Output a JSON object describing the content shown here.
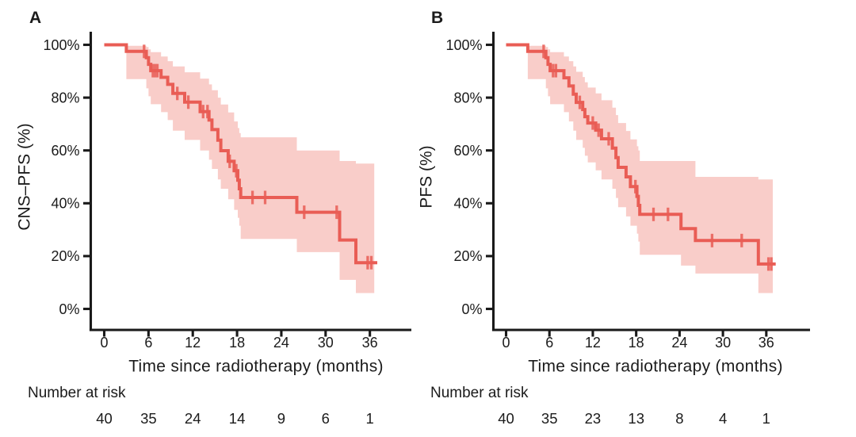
{
  "figure": {
    "background": "#ffffff",
    "axis_color": "#1a1a1a",
    "text_color": "#1b1b1b"
  },
  "chart_data": [
    {
      "type": "line",
      "subtype": "kaplan-meier-step",
      "title": "A",
      "xlabel": "Time since radiotherapy (months)",
      "ylabel": "CNS–PFS (%)",
      "xlim": [
        0,
        38
      ],
      "ylim": [
        0,
        100
      ],
      "x_ticks": [
        0,
        6,
        12,
        18,
        24,
        30,
        36
      ],
      "y_tick_values": [
        0,
        20,
        40,
        60,
        80,
        100
      ],
      "y_tick_labels": [
        "0%",
        "20%",
        "40%",
        "60%",
        "80%",
        "100%"
      ],
      "grid": false,
      "legend": "none",
      "series": [
        {
          "name": "CNS-PFS",
          "color": "#e95d55",
          "band_color": "#f9cdc9",
          "steps": [
            [
              0,
              100
            ],
            [
              3,
              97.5
            ],
            [
              5.7,
              95.1
            ],
            [
              6,
              92.6
            ],
            [
              6.3,
              90.2
            ],
            [
              7.7,
              87.7
            ],
            [
              8.6,
              85.0
            ],
            [
              9.3,
              81.6
            ],
            [
              10.9,
              78.3
            ],
            [
              13,
              74.7
            ],
            [
              14.2,
              71.5
            ],
            [
              14.6,
              67.9
            ],
            [
              15.4,
              63.9
            ],
            [
              15.8,
              59.9
            ],
            [
              16.8,
              55.9
            ],
            [
              17.6,
              52.3
            ],
            [
              18.1,
              48.7
            ],
            [
              18.3,
              45.5
            ],
            [
              18.5,
              42.2
            ],
            [
              26.1,
              36.6
            ],
            [
              31.9,
              26.1
            ],
            [
              34.1,
              17.5
            ]
          ],
          "curve_end": 37.0,
          "censor_times": [
            5.4,
            6.6,
            6.9,
            7.2,
            9.9,
            11.4,
            13.4,
            14.0,
            17.0,
            17.9,
            20.1,
            21.8,
            27.1,
            31.5,
            35.7,
            36.2
          ],
          "ci_band": [
            [
              3,
              87,
              99.6
            ],
            [
              5.7,
              83.5,
              99.2
            ],
            [
              6,
              80.5,
              98.3
            ],
            [
              6.3,
              77.5,
              97.2
            ],
            [
              7.7,
              74.5,
              95.6
            ],
            [
              8.6,
              71.5,
              93.8
            ],
            [
              9.3,
              67.5,
              91.8
            ],
            [
              10.9,
              64,
              89.6
            ],
            [
              13,
              60,
              87.2
            ],
            [
              14.2,
              56.5,
              85
            ],
            [
              14.6,
              53,
              82.8
            ],
            [
              15.4,
              49,
              80
            ],
            [
              15.8,
              45.5,
              77.4
            ],
            [
              16.8,
              41.5,
              74.4
            ],
            [
              17.6,
              37.5,
              71
            ],
            [
              18.1,
              34.5,
              68.5
            ],
            [
              18.3,
              31.5,
              66.6
            ],
            [
              18.5,
              26.5,
              65
            ],
            [
              26.1,
              21.5,
              60
            ],
            [
              31.9,
              11,
              56
            ],
            [
              34.1,
              6,
              55
            ]
          ],
          "band_end": 36.6
        }
      ],
      "number_at_risk": {
        "label": "Number at risk",
        "times": [
          0,
          6,
          12,
          18,
          24,
          30,
          36
        ],
        "counts": [
          40,
          35,
          24,
          14,
          9,
          6,
          1
        ]
      }
    },
    {
      "type": "line",
      "subtype": "kaplan-meier-step",
      "title": "B",
      "xlabel": "Time since radiotherapy (months)",
      "ylabel": "PFS (%)",
      "xlim": [
        0,
        38
      ],
      "ylim": [
        0,
        100
      ],
      "x_ticks": [
        0,
        6,
        12,
        18,
        24,
        30,
        36
      ],
      "y_tick_values": [
        0,
        20,
        40,
        60,
        80,
        100
      ],
      "y_tick_labels": [
        "0%",
        "20%",
        "40%",
        "60%",
        "80%",
        "100%"
      ],
      "grid": false,
      "legend": "none",
      "series": [
        {
          "name": "PFS",
          "color": "#e95d55",
          "band_color": "#f9cdc9",
          "steps": [
            [
              0,
              100
            ],
            [
              3,
              97.5
            ],
            [
              5.5,
              95.1
            ],
            [
              5.8,
              92.6
            ],
            [
              6.1,
              90.2
            ],
            [
              8,
              87.5
            ],
            [
              8.7,
              84.4
            ],
            [
              9.3,
              81.3
            ],
            [
              9.7,
              78.2
            ],
            [
              10.6,
              75.5
            ],
            [
              10.9,
              72.8
            ],
            [
              11.3,
              70.4
            ],
            [
              12.4,
              67.7
            ],
            [
              13.2,
              64.4
            ],
            [
              14.7,
              60.9
            ],
            [
              15.2,
              57.3
            ],
            [
              15.5,
              53.6
            ],
            [
              16.6,
              50.0
            ],
            [
              17.2,
              46.3
            ],
            [
              18.1,
              42.6
            ],
            [
              18.3,
              39.2
            ],
            [
              18.5,
              35.8
            ],
            [
              24.2,
              30.4
            ],
            [
              26.2,
              25.9
            ],
            [
              34.9,
              17.0
            ]
          ],
          "curve_end": 37.3,
          "censor_times": [
            5.2,
            6.5,
            6.9,
            10.2,
            12.0,
            12.8,
            14.2,
            17.9,
            20.4,
            22.4,
            28.5,
            32.6,
            36.3,
            36.7
          ],
          "ci_band": [
            [
              3,
              87,
              99.6
            ],
            [
              5.5,
              83.5,
              99.2
            ],
            [
              5.8,
              80.5,
              98.3
            ],
            [
              6.1,
              77.5,
              97.2
            ],
            [
              8,
              74.5,
              95.6
            ],
            [
              8.7,
              71,
              93.8
            ],
            [
              9.3,
              67.5,
              91.8
            ],
            [
              9.7,
              64,
              89.8
            ],
            [
              10.6,
              61,
              87.8
            ],
            [
              10.9,
              58,
              85.8
            ],
            [
              11.3,
              55.5,
              83.8
            ],
            [
              12.4,
              52.5,
              81.6
            ],
            [
              13.2,
              49,
              79
            ],
            [
              14.7,
              45.5,
              76.2
            ],
            [
              15.2,
              42,
              73.4
            ],
            [
              15.5,
              38.5,
              70.4
            ],
            [
              16.6,
              35,
              67.4
            ],
            [
              17.2,
              31.5,
              64.2
            ],
            [
              18.1,
              28.5,
              61.6
            ],
            [
              18.3,
              25.5,
              60
            ],
            [
              18.5,
              20.5,
              56
            ],
            [
              24.2,
              16.4,
              56
            ],
            [
              26.2,
              13.4,
              50
            ],
            [
              34.9,
              6,
              49
            ]
          ],
          "band_end": 36.9
        }
      ],
      "number_at_risk": {
        "label": "Number at risk",
        "times": [
          0,
          6,
          12,
          18,
          24,
          30,
          36
        ],
        "counts": [
          40,
          35,
          23,
          13,
          8,
          4,
          1
        ]
      }
    }
  ]
}
